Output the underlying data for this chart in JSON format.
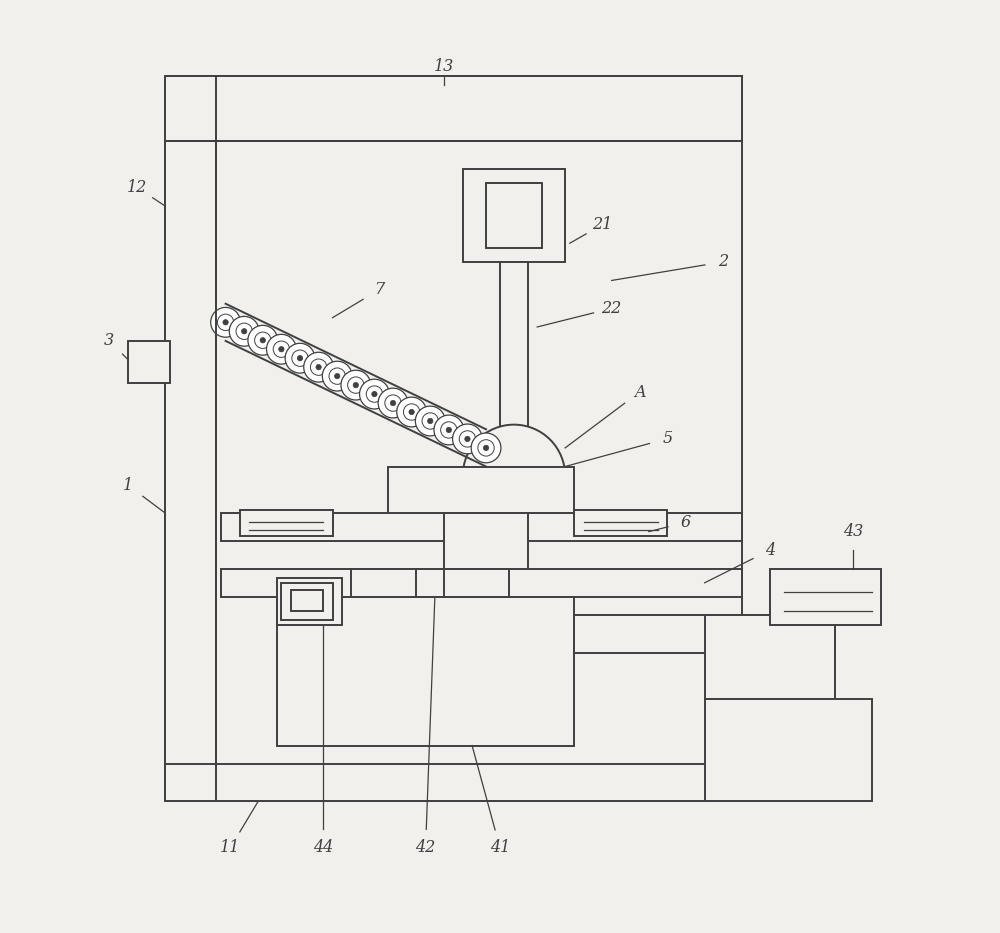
{
  "bg_color": "#f2f0ec",
  "line_color": "#404040",
  "lw": 1.4,
  "fig_width": 10.0,
  "fig_height": 9.33
}
